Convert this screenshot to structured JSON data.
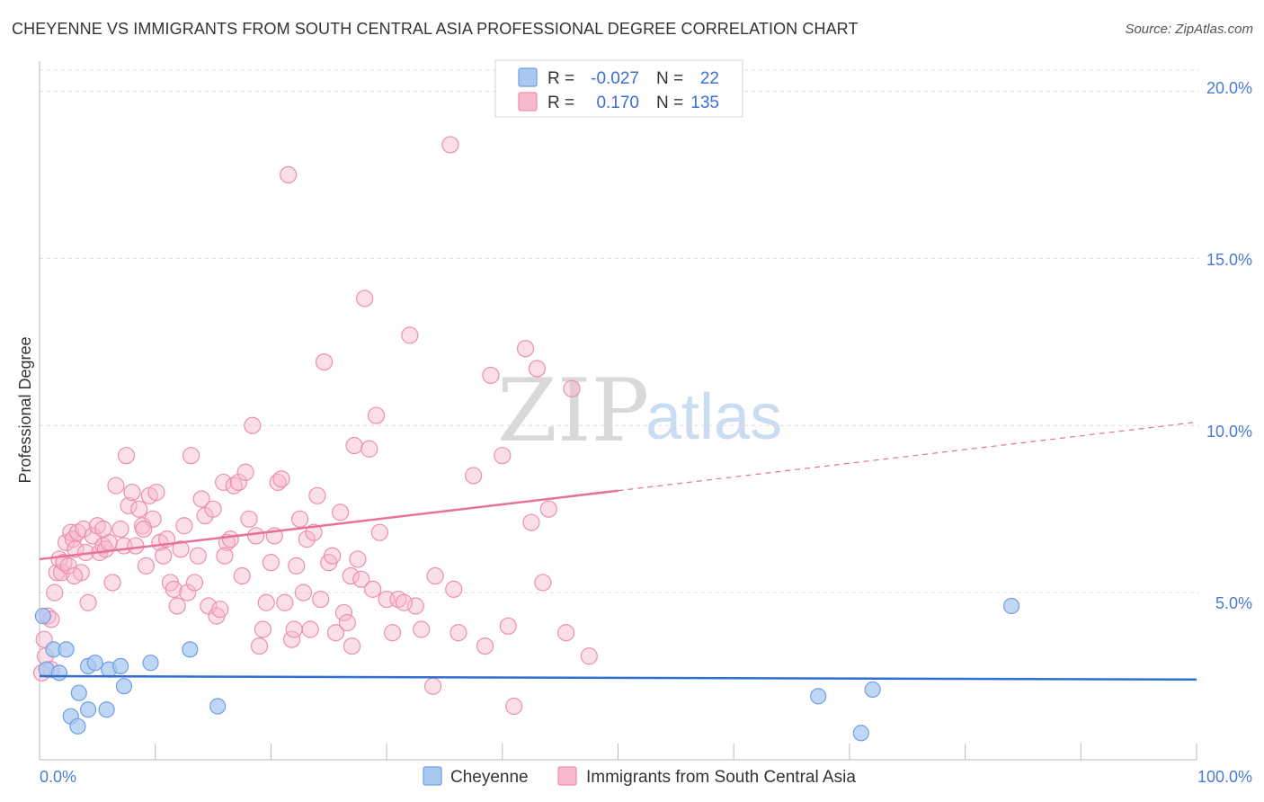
{
  "header": {
    "title": "CHEYENNE VS IMMIGRANTS FROM SOUTH CENTRAL ASIA PROFESSIONAL DEGREE CORRELATION CHART",
    "source": "Source: ZipAtlas.com"
  },
  "watermark": {
    "zip": "ZIP",
    "atlas": "atlas"
  },
  "legend_top": {
    "rows": [
      {
        "r_label": "R = ",
        "r_value": "-0.027",
        "n_label": "N = ",
        "n_value": "22"
      },
      {
        "r_label": "R = ",
        "r_value": "0.170",
        "n_label": "N = ",
        "n_value": "135"
      }
    ]
  },
  "colors": {
    "blue_fill": "#a9c8f0",
    "blue_stroke": "#6fa0e0",
    "blue_line": "#2f6fd1",
    "pink_fill": "#f6b8cb",
    "pink_stroke": "#ec8fae",
    "pink_line": "#e8719a",
    "grid": "#dddddd",
    "axis": "#bbbbbb"
  },
  "chart_data": {
    "type": "scatter",
    "title": "CHEYENNE VS IMMIGRANTS FROM SOUTH CENTRAL ASIA PROFESSIONAL DEGREE CORRELATION CHART",
    "xlabel": "",
    "ylabel": "Professional Degree",
    "xlim": [
      0,
      100
    ],
    "ylim": [
      0,
      20.9
    ],
    "x_tick_labels": [
      "0.0%",
      "100.0%"
    ],
    "y_ticks": [
      5,
      10,
      15,
      20
    ],
    "y_tick_labels": [
      "5.0%",
      "10.0%",
      "15.0%",
      "20.0%"
    ],
    "legend": [
      "Cheyenne",
      "Immigrants from South Central Asia"
    ],
    "series": [
      {
        "name": "Cheyenne",
        "r": -0.027,
        "n": 22,
        "trend": {
          "x0": 0,
          "y0": 2.5,
          "x1": 100,
          "y1": 2.4,
          "dashed_from": null
        },
        "points": [
          [
            0.3,
            4.3
          ],
          [
            0.6,
            2.7
          ],
          [
            1.2,
            3.3
          ],
          [
            1.7,
            2.6
          ],
          [
            2.3,
            3.3
          ],
          [
            2.7,
            1.3
          ],
          [
            3.3,
            1.0
          ],
          [
            3.4,
            2.0
          ],
          [
            4.2,
            1.5
          ],
          [
            4.2,
            2.8
          ],
          [
            4.8,
            2.9
          ],
          [
            5.8,
            1.5
          ],
          [
            6.0,
            2.7
          ],
          [
            7.0,
            2.8
          ],
          [
            7.3,
            2.2
          ],
          [
            9.6,
            2.9
          ],
          [
            13.0,
            3.3
          ],
          [
            15.4,
            1.6
          ],
          [
            67.3,
            1.9
          ],
          [
            71.0,
            0.8
          ],
          [
            72.0,
            2.1
          ],
          [
            84.0,
            4.6
          ]
        ]
      },
      {
        "name": "Immigrants from South Central Asia",
        "r": 0.17,
        "n": 135,
        "trend": {
          "x0": 0,
          "y0": 6.0,
          "x1": 100,
          "y1": 10.1,
          "dashed_from": 50
        },
        "points": [
          [
            0.2,
            2.6
          ],
          [
            0.4,
            3.6
          ],
          [
            0.5,
            3.1
          ],
          [
            0.7,
            4.3
          ],
          [
            1.0,
            2.7
          ],
          [
            1.3,
            5.0
          ],
          [
            1.5,
            5.6
          ],
          [
            1.7,
            6.0
          ],
          [
            1.9,
            5.6
          ],
          [
            2.1,
            5.9
          ],
          [
            2.3,
            6.5
          ],
          [
            2.5,
            5.8
          ],
          [
            2.7,
            6.8
          ],
          [
            2.9,
            6.6
          ],
          [
            3.1,
            6.3
          ],
          [
            3.3,
            6.8
          ],
          [
            3.6,
            5.6
          ],
          [
            3.8,
            6.9
          ],
          [
            4.0,
            6.2
          ],
          [
            4.2,
            4.7
          ],
          [
            4.6,
            6.7
          ],
          [
            5.0,
            7.0
          ],
          [
            5.2,
            6.2
          ],
          [
            5.5,
            6.4
          ],
          [
            5.7,
            6.3
          ],
          [
            6.0,
            6.5
          ],
          [
            6.3,
            5.3
          ],
          [
            6.6,
            8.2
          ],
          [
            7.0,
            6.9
          ],
          [
            7.3,
            6.4
          ],
          [
            7.5,
            9.1
          ],
          [
            7.7,
            7.6
          ],
          [
            8.0,
            8.0
          ],
          [
            8.3,
            6.4
          ],
          [
            8.6,
            7.5
          ],
          [
            8.9,
            7.0
          ],
          [
            9.2,
            5.8
          ],
          [
            9.5,
            7.9
          ],
          [
            9.8,
            7.2
          ],
          [
            10.1,
            8.0
          ],
          [
            10.4,
            6.5
          ],
          [
            10.7,
            6.1
          ],
          [
            11.0,
            6.6
          ],
          [
            11.3,
            5.3
          ],
          [
            11.6,
            5.1
          ],
          [
            11.9,
            4.6
          ],
          [
            12.2,
            6.3
          ],
          [
            12.5,
            7.0
          ],
          [
            12.8,
            5.0
          ],
          [
            13.1,
            9.1
          ],
          [
            13.4,
            5.3
          ],
          [
            13.7,
            6.1
          ],
          [
            14.0,
            7.8
          ],
          [
            14.3,
            7.3
          ],
          [
            14.6,
            4.6
          ],
          [
            15.0,
            7.5
          ],
          [
            15.3,
            4.3
          ],
          [
            15.6,
            4.5
          ],
          [
            15.9,
            8.3
          ],
          [
            16.2,
            6.5
          ],
          [
            16.5,
            6.6
          ],
          [
            16.8,
            8.2
          ],
          [
            17.2,
            8.3
          ],
          [
            17.5,
            5.5
          ],
          [
            17.8,
            8.6
          ],
          [
            18.1,
            7.2
          ],
          [
            18.4,
            10.0
          ],
          [
            18.7,
            6.7
          ],
          [
            19.0,
            3.4
          ],
          [
            19.3,
            3.9
          ],
          [
            19.6,
            4.7
          ],
          [
            20.0,
            5.9
          ],
          [
            20.3,
            6.7
          ],
          [
            20.6,
            8.3
          ],
          [
            20.9,
            8.4
          ],
          [
            21.2,
            4.7
          ],
          [
            21.5,
            17.5
          ],
          [
            21.8,
            3.6
          ],
          [
            22.2,
            5.8
          ],
          [
            22.5,
            7.2
          ],
          [
            22.8,
            5.0
          ],
          [
            23.1,
            6.6
          ],
          [
            23.4,
            3.9
          ],
          [
            23.7,
            6.8
          ],
          [
            24.0,
            7.9
          ],
          [
            24.3,
            4.8
          ],
          [
            24.6,
            11.9
          ],
          [
            25.0,
            5.9
          ],
          [
            25.3,
            6.1
          ],
          [
            25.6,
            3.8
          ],
          [
            26.0,
            7.4
          ],
          [
            26.3,
            4.4
          ],
          [
            26.6,
            4.1
          ],
          [
            26.9,
            5.5
          ],
          [
            27.2,
            9.4
          ],
          [
            27.5,
            6.0
          ],
          [
            27.8,
            5.4
          ],
          [
            28.1,
            13.8
          ],
          [
            28.5,
            9.3
          ],
          [
            28.8,
            5.1
          ],
          [
            29.1,
            10.3
          ],
          [
            29.4,
            6.8
          ],
          [
            30.0,
            4.8
          ],
          [
            30.5,
            3.8
          ],
          [
            31.0,
            4.8
          ],
          [
            32.0,
            12.7
          ],
          [
            32.5,
            4.6
          ],
          [
            33.0,
            3.9
          ],
          [
            34.2,
            5.5
          ],
          [
            35.5,
            18.4
          ],
          [
            35.8,
            5.1
          ],
          [
            36.2,
            3.8
          ],
          [
            37.5,
            8.5
          ],
          [
            38.5,
            3.4
          ],
          [
            39.0,
            11.5
          ],
          [
            40.0,
            9.1
          ],
          [
            41.0,
            1.6
          ],
          [
            42.0,
            12.3
          ],
          [
            42.5,
            7.1
          ],
          [
            43.0,
            11.7
          ],
          [
            43.5,
            5.3
          ],
          [
            44.0,
            7.5
          ],
          [
            45.5,
            3.8
          ],
          [
            46.0,
            11.1
          ],
          [
            47.5,
            3.1
          ],
          [
            31.5,
            4.7
          ],
          [
            22.0,
            3.9
          ],
          [
            27.0,
            3.4
          ],
          [
            34.0,
            2.2
          ],
          [
            40.5,
            4.0
          ],
          [
            16.0,
            6.1
          ],
          [
            9.0,
            6.9
          ],
          [
            5.5,
            6.9
          ],
          [
            3.0,
            5.5
          ],
          [
            1.0,
            4.2
          ]
        ]
      }
    ]
  },
  "bottom_legend": {
    "items": [
      {
        "label": "Cheyenne"
      },
      {
        "label": "Immigrants from South Central Asia"
      }
    ]
  },
  "axes": {
    "ylabel": "Professional Degree",
    "x_left": "0.0%",
    "x_right": "100.0%",
    "y_labels": [
      "5.0%",
      "10.0%",
      "15.0%",
      "20.0%"
    ]
  }
}
